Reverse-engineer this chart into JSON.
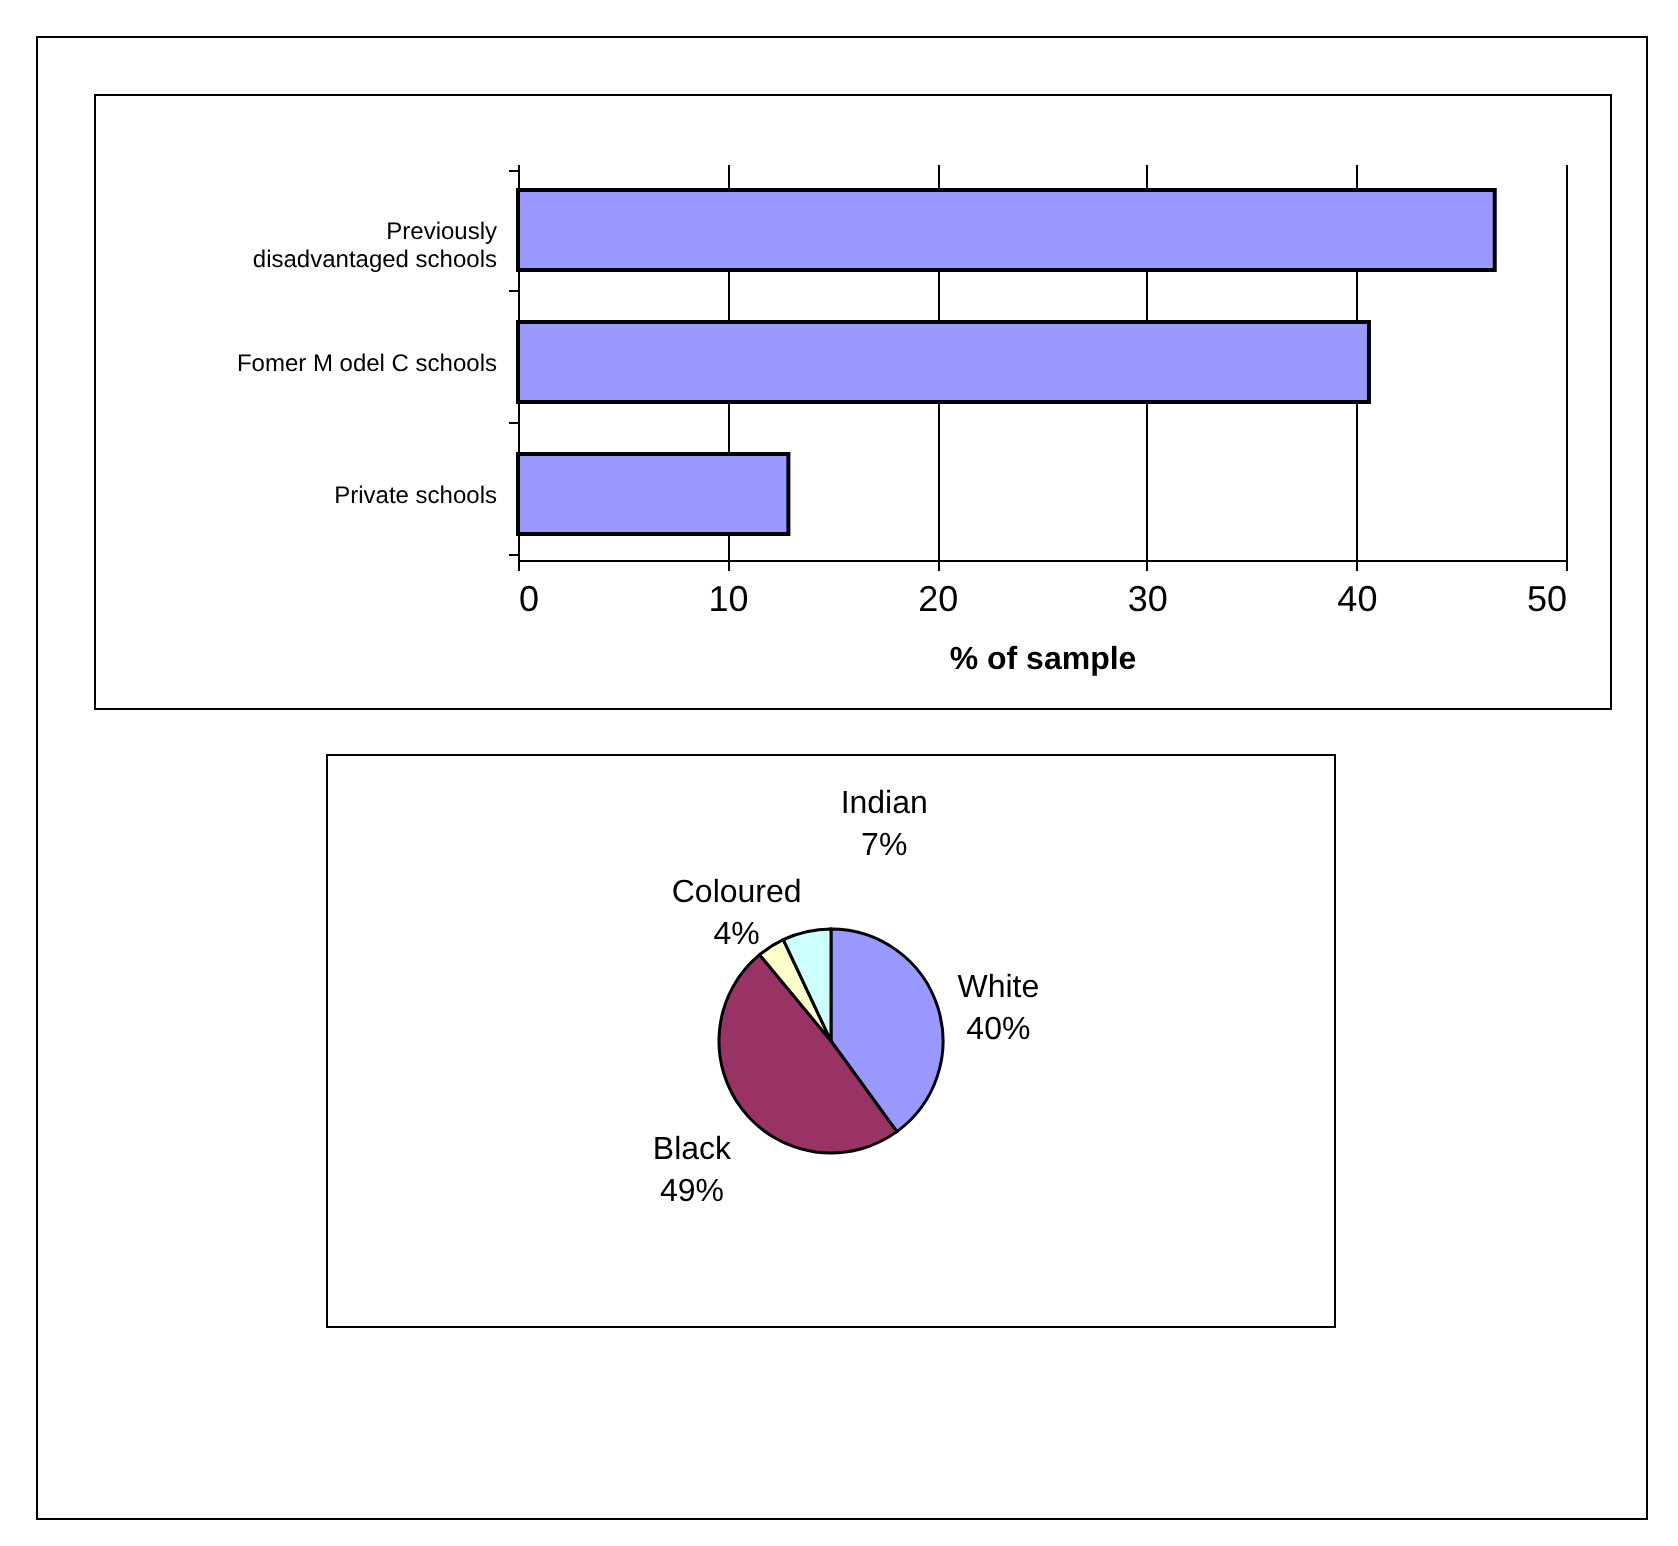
{
  "chart_data": [
    {
      "type": "bar",
      "orientation": "horizontal",
      "categories": [
        "Previously disadvantaged schools",
        "Fomer M odel C schools",
        "Private schools"
      ],
      "values": [
        46.6,
        40.6,
        12.9
      ],
      "color": "#9999ff",
      "xlim": [
        0,
        50
      ],
      "xticks": [
        0,
        10,
        20,
        30,
        40,
        50
      ],
      "xlabel": "% of sample",
      "grid": "x",
      "legend": false
    },
    {
      "type": "pie",
      "categories": [
        "White",
        "Black",
        "Coloured",
        "Indian"
      ],
      "values": [
        40,
        49,
        4,
        7
      ],
      "value_labels": [
        "40%",
        "49%",
        "4%",
        "7%"
      ],
      "colors": [
        "#9999ff",
        "#993366",
        "#ffffcc",
        "#ccffff"
      ],
      "legend": false
    }
  ]
}
